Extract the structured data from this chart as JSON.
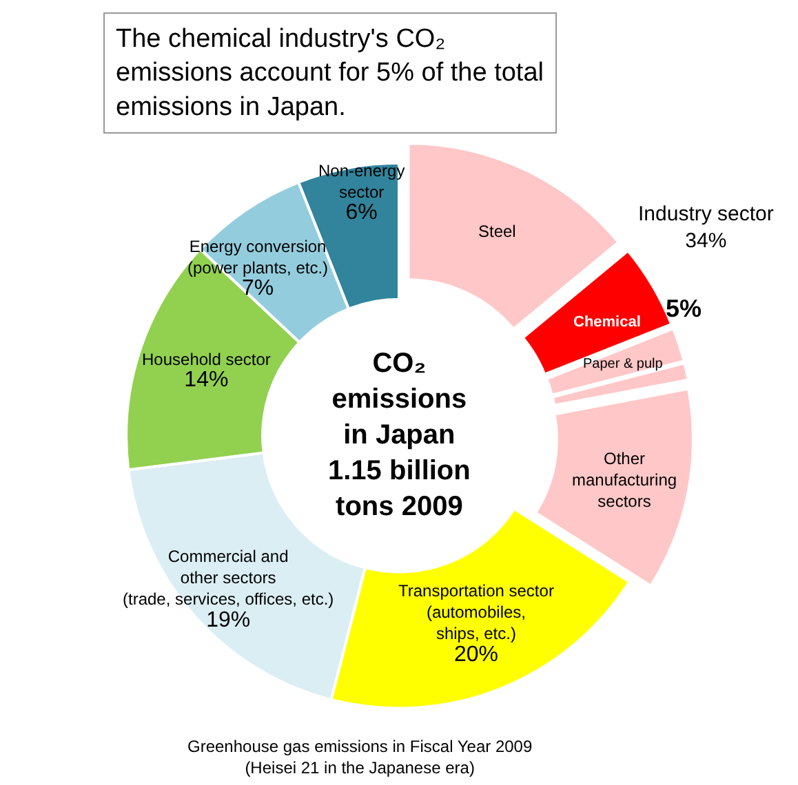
{
  "chart_data": {
    "type": "donut",
    "title": "The chemical industry's CO₂\nemissions account for 5% of the total\nemissions in Japan.",
    "categories": [
      "Steel",
      "Chemical",
      "Paper & pulp",
      null,
      "Other\nmanufacturing\nsectors",
      "Transportation sector\n(automobiles,\nships, etc.)",
      "Commercial and\nother sectors\n(trade, services, offices, etc.)",
      "Household sector",
      "Energy conversion\n(power plants, etc.)",
      "Non-energy\nsector"
    ],
    "values": [
      14,
      5,
      2,
      1,
      12,
      20,
      19,
      14,
      7,
      6
    ],
    "value_labels": [
      null,
      "5%",
      null,
      null,
      null,
      "20%",
      "19%",
      "14%",
      "7%",
      "6%"
    ],
    "colors": [
      "#ffc7c7",
      "#ff0000",
      "#ffc7c7",
      "#ffc7c7",
      "#ffc7c7",
      "#ffff00",
      "#dbeef4",
      "#92d050",
      "#93cddd",
      "#31849b"
    ],
    "annotations": [
      "CO₂\nemissions\nin Japan\n1.15 billion\ntons 2009",
      "Industry sector\n34%",
      "Greenhouse gas emissions in Fiscal Year 2009\n(Heisei 21 in the Japanese era)"
    ]
  }
}
